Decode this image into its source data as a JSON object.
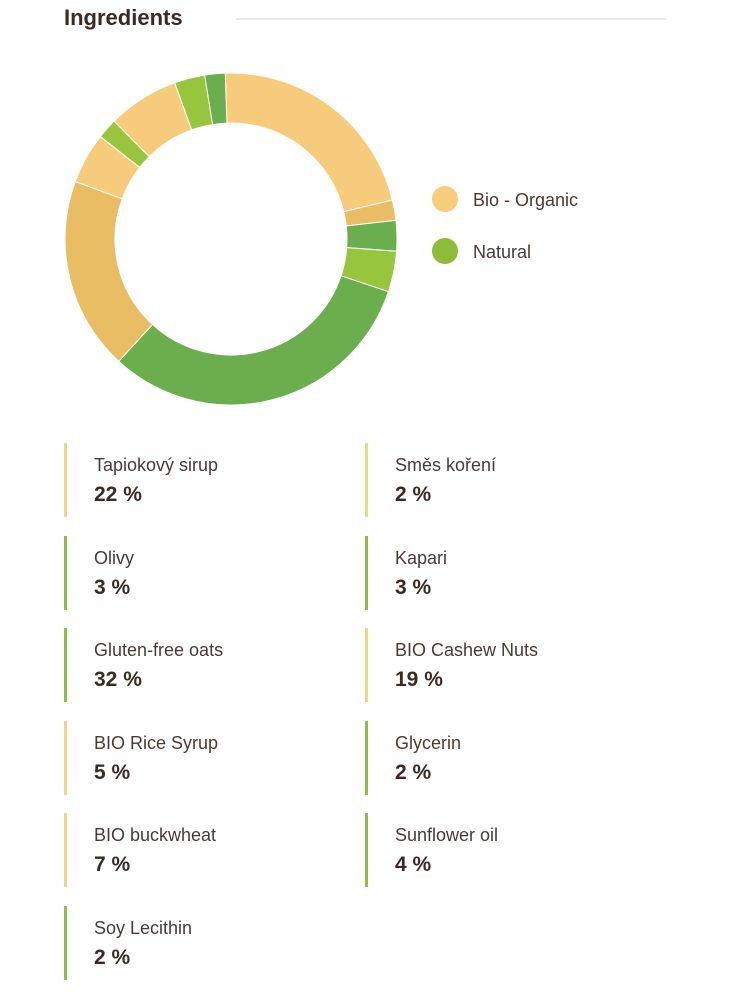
{
  "title": "Ingredients",
  "colors": {
    "organic_legend": "#f6cd7b",
    "natural_legend": "#8dbb3a",
    "organic_bar": "#f3d48c",
    "natural_bar": "#8cbf4a"
  },
  "legend": [
    {
      "label": "Bio - Organic",
      "color": "#f6cd7b"
    },
    {
      "label": "Natural",
      "color": "#8dbb3a"
    }
  ],
  "chart_data": {
    "type": "pie",
    "variant": "donut",
    "start_angle_deg": -2,
    "slices": [
      {
        "label": "Tapiokový sirup",
        "value": 22,
        "group": "organic",
        "color": "#f6cc7c"
      },
      {
        "label": "Směs koření",
        "value": 2,
        "group": "organic",
        "color": "#e8bd64"
      },
      {
        "label": "Kapari",
        "value": 3,
        "group": "natural",
        "color": "#6aae4e"
      },
      {
        "label": "Sunflower oil",
        "value": 4,
        "group": "natural",
        "color": "#97c63e"
      },
      {
        "label": "Gluten-free oats",
        "value": 32,
        "group": "natural",
        "color": "#6aae4e"
      },
      {
        "label": "BIO Cashew Nuts",
        "value": 19,
        "group": "organic",
        "color": "#e8bd64"
      },
      {
        "label": "BIO Rice Syrup",
        "value": 5,
        "group": "organic",
        "color": "#f6cc7c"
      },
      {
        "label": "Soy Lecithin",
        "value": 2,
        "group": "natural",
        "color": "#97c63e"
      },
      {
        "label": "BIO buckwheat",
        "value": 7,
        "group": "organic",
        "color": "#f6cc7c"
      },
      {
        "label": "Olivy",
        "value": 3,
        "group": "natural",
        "color": "#97c63e"
      },
      {
        "label": "Glycerin",
        "value": 2,
        "group": "natural",
        "color": "#6aae4e"
      }
    ]
  },
  "ingredients": [
    {
      "name": "Tapiokový sirup",
      "percent": "22 %",
      "type": "organic"
    },
    {
      "name": "Směs koření",
      "percent": "2 %",
      "type": "organic"
    },
    {
      "name": "Olivy",
      "percent": "3 %",
      "type": "natural"
    },
    {
      "name": "Kapari",
      "percent": "3 %",
      "type": "natural"
    },
    {
      "name": "Gluten-free oats",
      "percent": "32 %",
      "type": "natural"
    },
    {
      "name": "BIO Cashew Nuts",
      "percent": "19 %",
      "type": "organic"
    },
    {
      "name": "BIO Rice Syrup",
      "percent": "5 %",
      "type": "organic"
    },
    {
      "name": "Glycerin",
      "percent": "2 %",
      "type": "natural"
    },
    {
      "name": "BIO buckwheat",
      "percent": "7 %",
      "type": "organic"
    },
    {
      "name": "Sunflower oil",
      "percent": "4 %",
      "type": "natural"
    },
    {
      "name": "Soy Lecithin",
      "percent": "2 %",
      "type": "natural"
    }
  ]
}
